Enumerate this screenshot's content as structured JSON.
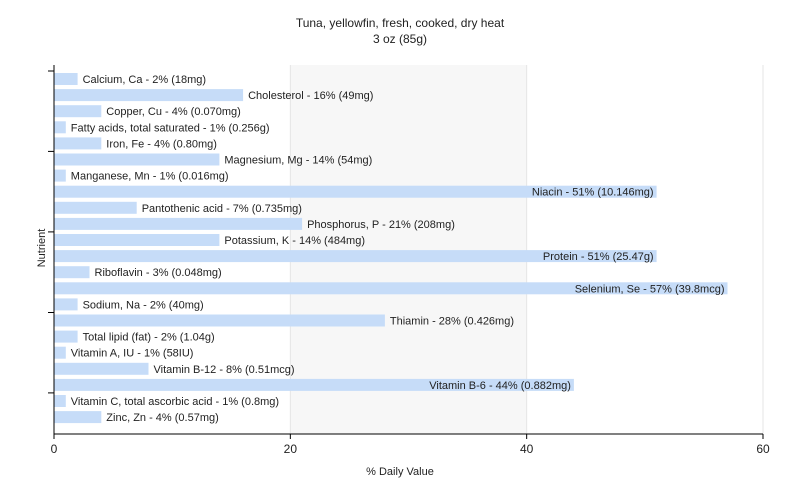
{
  "chart_data": {
    "type": "bar",
    "orientation": "horizontal",
    "title": "Tuna, yellowfin, fresh, cooked, dry heat",
    "subtitle": "3 oz (85g)",
    "xlabel": "% Daily Value",
    "ylabel": "Nutrient",
    "xlim": [
      0,
      60
    ],
    "xticks": [
      "0",
      "20",
      "40",
      "60"
    ],
    "grid": true,
    "bar_color": "#c6dcf8",
    "categories": [
      "Calcium, Ca",
      "Cholesterol",
      "Copper, Cu",
      "Fatty acids, total saturated",
      "Iron, Fe",
      "Magnesium, Mg",
      "Manganese, Mn",
      "Niacin",
      "Pantothenic acid",
      "Phosphorus, P",
      "Potassium, K",
      "Protein",
      "Riboflavin",
      "Selenium, Se",
      "Sodium, Na",
      "Thiamin",
      "Total lipid (fat)",
      "Vitamin A, IU",
      "Vitamin B-12",
      "Vitamin B-6",
      "Vitamin C, total ascorbic acid",
      "Zinc, Zn"
    ],
    "values": [
      2,
      16,
      4,
      1,
      4,
      14,
      1,
      51,
      7,
      21,
      14,
      51,
      3,
      57,
      2,
      28,
      2,
      1,
      8,
      44,
      1,
      4
    ],
    "labels": [
      "Calcium, Ca - 2% (18mg)",
      "Cholesterol - 16% (49mg)",
      "Copper, Cu - 4% (0.070mg)",
      "Fatty acids, total saturated - 1% (0.256g)",
      "Iron, Fe - 4% (0.80mg)",
      "Magnesium, Mg - 14% (54mg)",
      "Manganese, Mn - 1% (0.016mg)",
      "Niacin - 51% (10.146mg)",
      "Pantothenic acid - 7% (0.735mg)",
      "Phosphorus, P - 21% (208mg)",
      "Potassium, K - 14% (484mg)",
      "Protein - 51% (25.47g)",
      "Riboflavin - 3% (0.048mg)",
      "Selenium, Se - 57% (39.8mcg)",
      "Sodium, Na - 2% (40mg)",
      "Thiamin - 28% (0.426mg)",
      "Total lipid (fat) - 2% (1.04g)",
      "Vitamin A, IU - 1% (58IU)",
      "Vitamin B-12 - 8% (0.51mcg)",
      "Vitamin B-6 - 44% (0.882mg)",
      "Vitamin C, total ascorbic acid - 1% (0.8mg)",
      "Zinc, Zn - 4% (0.57mg)"
    ]
  }
}
